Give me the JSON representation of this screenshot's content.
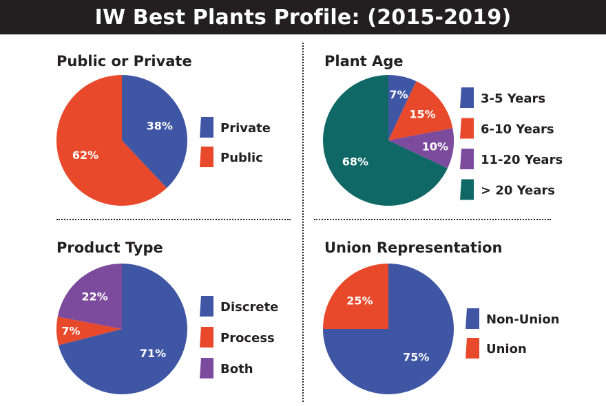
{
  "header": {
    "title": "IW Best Plants Profile: (2015-2019)"
  },
  "colors": {
    "blue": "#3f56a5",
    "orange": "#e8492b",
    "purple": "#7c4b9e",
    "teal": "#0f6866",
    "dark": "#231f20"
  },
  "chart_data": [
    {
      "type": "pie",
      "title": "Public or Private",
      "slices": [
        {
          "label": "Private",
          "value": 38,
          "display": "38%",
          "color": "#3f56a5"
        },
        {
          "label": "Public",
          "value": 62,
          "display": "62%",
          "color": "#e8492b"
        }
      ],
      "legend": [
        {
          "label": "Private",
          "color": "#3f56a5"
        },
        {
          "label": "Public",
          "color": "#e8492b"
        }
      ]
    },
    {
      "type": "pie",
      "title": "Plant Age",
      "slices": [
        {
          "label": "3-5 Years",
          "value": 7,
          "display": "7%",
          "color": "#3f56a5"
        },
        {
          "label": "6-10 Years",
          "value": 15,
          "display": "15%",
          "color": "#e8492b"
        },
        {
          "label": "11-20 Years",
          "value": 10,
          "display": "10%",
          "color": "#7c4b9e"
        },
        {
          "label": "> 20 Years",
          "value": 68,
          "display": "68%",
          "color": "#0f6866"
        }
      ],
      "legend": [
        {
          "label": "3-5 Years",
          "color": "#3f56a5"
        },
        {
          "label": "6-10 Years",
          "color": "#e8492b"
        },
        {
          "label": "11-20 Years",
          "color": "#7c4b9e"
        },
        {
          "label": "> 20 Years",
          "color": "#0f6866"
        }
      ]
    },
    {
      "type": "pie",
      "title": "Product Type",
      "slices": [
        {
          "label": "Discrete",
          "value": 71,
          "display": "71%",
          "color": "#3f56a5"
        },
        {
          "label": "Process",
          "value": 7,
          "display": "7%",
          "color": "#e8492b"
        },
        {
          "label": "Both",
          "value": 22,
          "display": "22%",
          "color": "#7c4b9e"
        }
      ],
      "legend": [
        {
          "label": "Discrete",
          "color": "#3f56a5"
        },
        {
          "label": "Process",
          "color": "#e8492b"
        },
        {
          "label": "Both",
          "color": "#7c4b9e"
        }
      ]
    },
    {
      "type": "pie",
      "title": "Union Representation",
      "slices": [
        {
          "label": "Non-Union",
          "value": 75,
          "display": "75%",
          "color": "#3f56a5"
        },
        {
          "label": "Union",
          "value": 25,
          "display": "25%",
          "color": "#e8492b"
        }
      ],
      "legend": [
        {
          "label": "Non-Union",
          "color": "#3f56a5"
        },
        {
          "label": "Union",
          "color": "#e8492b"
        }
      ]
    }
  ]
}
